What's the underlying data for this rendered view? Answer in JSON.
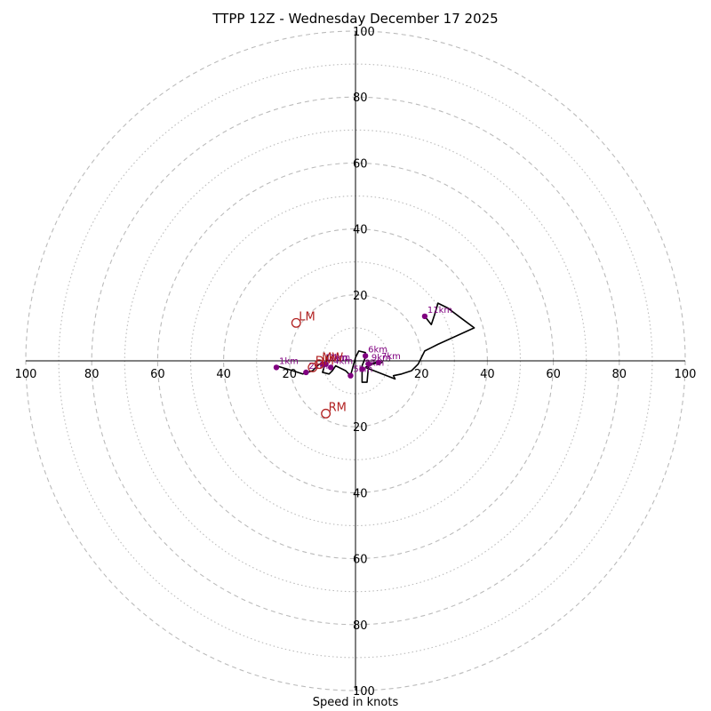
{
  "title": "TTPP 12Z - Wednesday December 17 2025",
  "chart_data": {
    "type": "hodograph",
    "title": "TTPP 12Z - Wednesday December 17 2025",
    "xlabel": "Speed in knots",
    "rings": [
      10,
      20,
      30,
      40,
      50,
      60,
      70,
      80,
      90,
      100
    ],
    "major_rings": [
      20,
      40,
      60,
      80,
      100
    ],
    "tick_labels": {
      "x_left": [
        "100",
        "80",
        "60",
        "40",
        "20"
      ],
      "x_right": [
        "20",
        "40",
        "60",
        "80",
        "100"
      ],
      "y_top": [
        "100",
        "80",
        "60",
        "40",
        "20"
      ],
      "y_bottom": [
        "20",
        "40",
        "60",
        "80",
        "100"
      ]
    },
    "colors": {
      "trace": "#000000",
      "markers": "#800080",
      "storm_motion": "#b22222",
      "grid": "#bbbbbb"
    },
    "wind_trace": [
      {
        "u": -24.0,
        "v": -1.5
      },
      {
        "u": -19.0,
        "v": -3.0
      },
      {
        "u": -16.0,
        "v": -4.0
      },
      {
        "u": -13.0,
        "v": -3.0
      },
      {
        "u": -11.0,
        "v": -1.0
      },
      {
        "u": -9.0,
        "v": -1.5
      },
      {
        "u": -8.5,
        "v": 1.5
      },
      {
        "u": -10.0,
        "v": -3.5
      },
      {
        "u": -8.0,
        "v": -4.0
      },
      {
        "u": -7.0,
        "v": -3.0
      },
      {
        "u": -6.0,
        "v": -1.5
      },
      {
        "u": -3.0,
        "v": -3.0
      },
      {
        "u": -1.5,
        "v": -4.5
      },
      {
        "u": 0.0,
        "v": 1.0
      },
      {
        "u": 1.0,
        "v": 3.0
      },
      {
        "u": 3.0,
        "v": 2.5
      },
      {
        "u": 3.0,
        "v": 1.0
      },
      {
        "u": 2.0,
        "v": -1.5
      },
      {
        "u": 2.0,
        "v": -6.5
      },
      {
        "u": 3.5,
        "v": -6.5
      },
      {
        "u": 4.0,
        "v": -1.0
      },
      {
        "u": 5.0,
        "v": -1.0
      },
      {
        "u": 7.0,
        "v": -0.5
      },
      {
        "u": 8.0,
        "v": -0.5
      },
      {
        "u": 6.0,
        "v": -0.5
      },
      {
        "u": 3.0,
        "v": -2.0
      },
      {
        "u": 12.0,
        "v": -5.5
      },
      {
        "u": 11.5,
        "v": -4.5
      },
      {
        "u": 14.0,
        "v": -4.0
      },
      {
        "u": 17.0,
        "v": -3.0
      },
      {
        "u": 19.0,
        "v": -1.0
      },
      {
        "u": 21.0,
        "v": 3.0
      },
      {
        "u": 23.0,
        "v": 4.0
      },
      {
        "u": 25.0,
        "v": 5.0
      },
      {
        "u": 36.0,
        "v": 10.0
      },
      {
        "u": 32.0,
        "v": 13.0
      },
      {
        "u": 28.0,
        "v": 16.0
      },
      {
        "u": 25.0,
        "v": 17.5
      },
      {
        "u": 24.0,
        "v": 14.0
      },
      {
        "u": 23.0,
        "v": 11.0
      },
      {
        "u": 21.0,
        "v": 13.5
      }
    ],
    "height_markers": [
      {
        "label": "1km",
        "u": -24.0,
        "v": -2.0
      },
      {
        "label": "2km",
        "u": -15.0,
        "v": -3.5
      },
      {
        "label": "3km",
        "u": -9.0,
        "v": -1.0
      },
      {
        "label": "4km",
        "u": -7.5,
        "v": -2.0
      },
      {
        "label": "5km",
        "u": -1.5,
        "v": -4.5
      },
      {
        "label": "6km",
        "u": 3.0,
        "v": 1.5
      },
      {
        "label": "7km",
        "u": 7.0,
        "v": -0.5
      },
      {
        "label": "8km",
        "u": 2.0,
        "v": -2.5
      },
      {
        "label": "9km",
        "u": 4.0,
        "v": -1.0
      },
      {
        "label": "10km",
        "u": -10.0,
        "v": -1.0
      },
      {
        "label": "11km",
        "u": 21.0,
        "v": 13.5
      }
    ],
    "storm_motion": [
      {
        "label": "LM",
        "u": -18.0,
        "v": 11.5
      },
      {
        "label": "RM",
        "u": -9.0,
        "v": -16.0
      },
      {
        "label": "MW",
        "u": -11.0,
        "v": -1.0
      },
      {
        "label": "DM",
        "u": -13.0,
        "v": -2.0
      }
    ]
  }
}
